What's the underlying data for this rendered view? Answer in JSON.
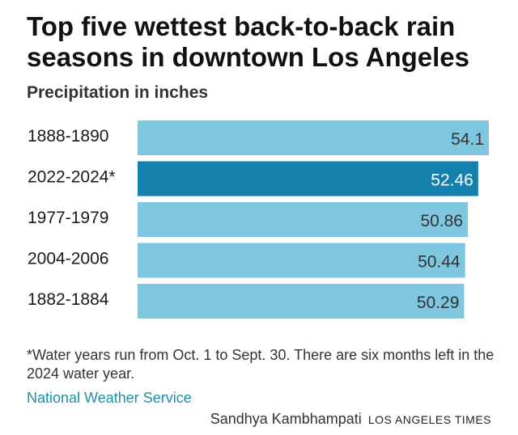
{
  "header": {
    "title": "Top five wettest back-to-back rain seasons in downtown Los Angeles"
  },
  "footer": {
    "footnote": "*Water years run from Oct. 1 to Sept. 30. There are six months left in the 2024 water year.",
    "source": "National Weather Service",
    "author": "Sandhya Kambhampati",
    "organization": "LOS ANGELES TIMES"
  },
  "colors": {
    "bar_default": "#7fc7e0",
    "bar_highlight": "#1480ad",
    "value_text_default": "#333333",
    "value_text_highlight": "#ffffff",
    "source_text": "#1d8fa8"
  },
  "chart_data": {
    "type": "bar",
    "orientation": "horizontal",
    "title": "Top five wettest back-to-back rain seasons in downtown Los Angeles",
    "subtitle": "Precipitation in inches",
    "categories": [
      "1888-1890",
      "2022-2024*",
      "1977-1979",
      "2004-2006",
      "1882-1884"
    ],
    "values": [
      54.1,
      52.46,
      50.86,
      50.44,
      50.29
    ],
    "value_labels": [
      "54.1",
      "52.46",
      "50.86",
      "50.44",
      "50.29"
    ],
    "highlight": "2022-2024*",
    "xlim": [
      0,
      54.1
    ],
    "grid": false,
    "legend": "none"
  }
}
